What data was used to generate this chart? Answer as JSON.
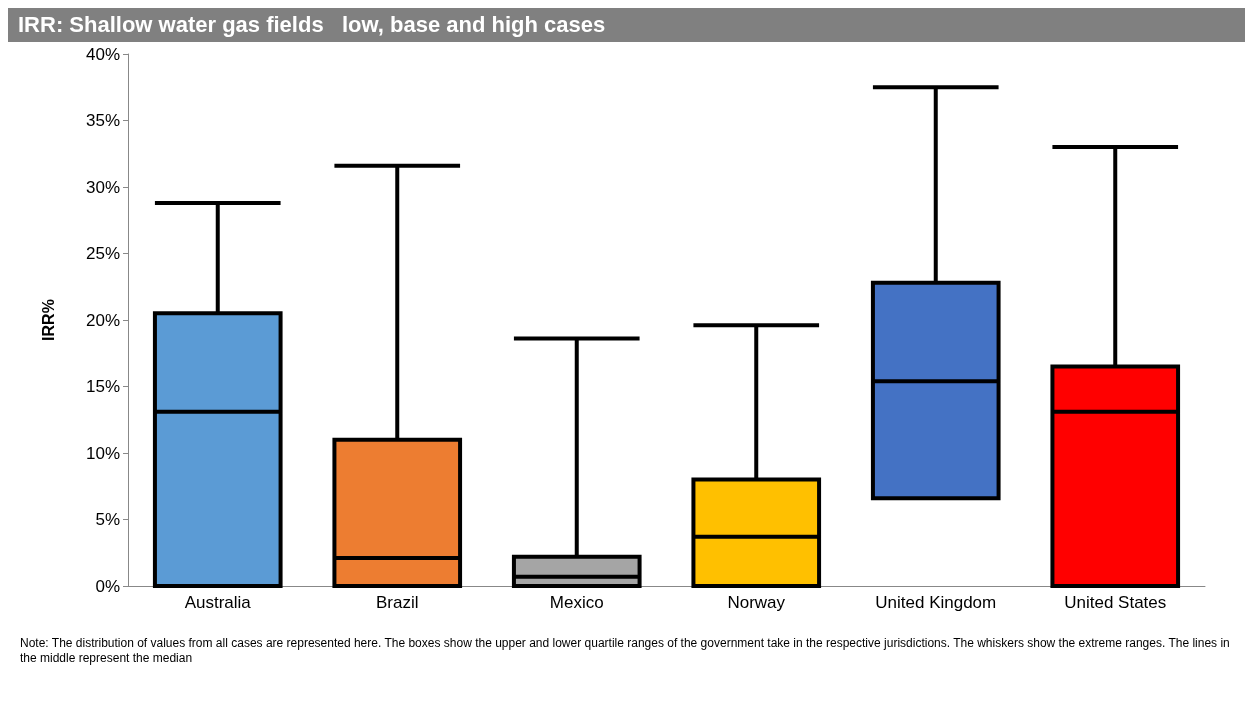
{
  "chart_data": {
    "type": "box",
    "title": "IRR: Shallow water gas fields   low, base and high cases",
    "ylabel": "IRR%",
    "categories": [
      "Australia",
      "Brazil",
      "Mexico",
      "Norway",
      "United Kingdom",
      "United States"
    ],
    "colors": [
      "#5b9bd5",
      "#ed7d31",
      "#a5a5a5",
      "#ffc000",
      "#4472c4",
      "#ff0000"
    ],
    "boxes": [
      {
        "low": 0,
        "q1": 0,
        "median": 13.1,
        "q3": 20.5,
        "high": 28.8
      },
      {
        "low": 0,
        "q1": 0,
        "median": 2.1,
        "q3": 11.0,
        "high": 31.6
      },
      {
        "low": 0,
        "q1": 0,
        "median": 0.7,
        "q3": 2.2,
        "high": 18.6
      },
      {
        "low": 0,
        "q1": 0,
        "median": 3.7,
        "q3": 8.0,
        "high": 19.6
      },
      {
        "low": 6.6,
        "q1": 6.6,
        "median": 15.4,
        "q3": 22.8,
        "high": 37.5
      },
      {
        "low": 0,
        "q1": 0,
        "median": 13.1,
        "q3": 16.5,
        "high": 33.0
      }
    ],
    "ylim": [
      0,
      40
    ],
    "yticks": [
      {
        "value": 0,
        "label": "0%"
      },
      {
        "value": 5,
        "label": "5%"
      },
      {
        "value": 10,
        "label": "10%"
      },
      {
        "value": 15,
        "label": "15%"
      },
      {
        "value": 20,
        "label": "20%"
      },
      {
        "value": 25,
        "label": "25%"
      },
      {
        "value": 30,
        "label": "30%"
      },
      {
        "value": 35,
        "label": "35%"
      },
      {
        "value": 40,
        "label": "40%"
      }
    ],
    "grid": false,
    "annotations": [
      "Note: The distribution of values from all cases are represented here. The boxes show the upper and lower quartile ranges of the government take in the respective jurisdictions. The whiskers show the extreme ranges. The lines in the middle represent the median"
    ]
  }
}
